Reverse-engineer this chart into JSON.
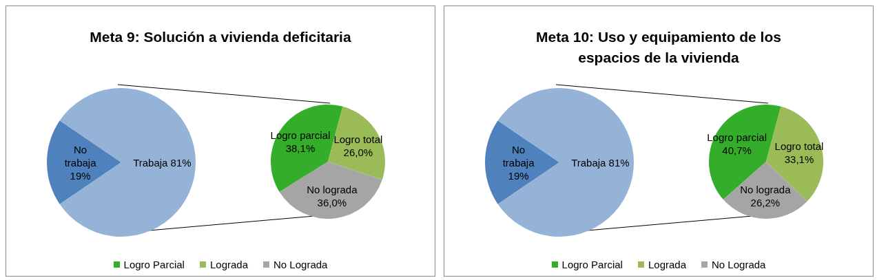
{
  "chart_data": [
    {
      "type": "pie",
      "title": "Meta 9: Solución a vivienda deficitaria",
      "categories": [
        "No trabaja",
        "Trabaja"
      ],
      "values": [
        19,
        81
      ],
      "colors": [
        "#4f81bd",
        "#95b3d7"
      ],
      "value_labels": [
        "19%",
        "81%"
      ]
    },
    {
      "type": "pie",
      "categories": [
        "Logro Parcial",
        "Lograda",
        "No Lograda"
      ],
      "values": [
        38.1,
        26.0,
        36.0
      ],
      "colors": [
        "#33ad2a",
        "#9bbb59",
        "#a5a5a5"
      ],
      "value_labels": [
        "Logro parcial 38,1%",
        "Logro total 26,0%",
        "No lograda 36,0%"
      ],
      "legend": "bottom"
    },
    {
      "type": "pie",
      "title": "Meta 10: Uso y equipamiento de los espacios de la vivienda",
      "categories": [
        "No trabaja",
        "Trabaja"
      ],
      "values": [
        19,
        81
      ],
      "colors": [
        "#4f81bd",
        "#95b3d7"
      ],
      "value_labels": [
        "19%",
        "81%"
      ]
    },
    {
      "type": "pie",
      "categories": [
        "Logro Parcial",
        "Lograda",
        "No Lograda"
      ],
      "values": [
        40.7,
        33.1,
        26.2
      ],
      "colors": [
        "#33ad2a",
        "#9bbb59",
        "#a5a5a5"
      ],
      "value_labels": [
        "Logro parcial 40,7%",
        "Logro total 33,1%",
        "No lograda 26,2%"
      ],
      "legend": "bottom"
    }
  ]
}
